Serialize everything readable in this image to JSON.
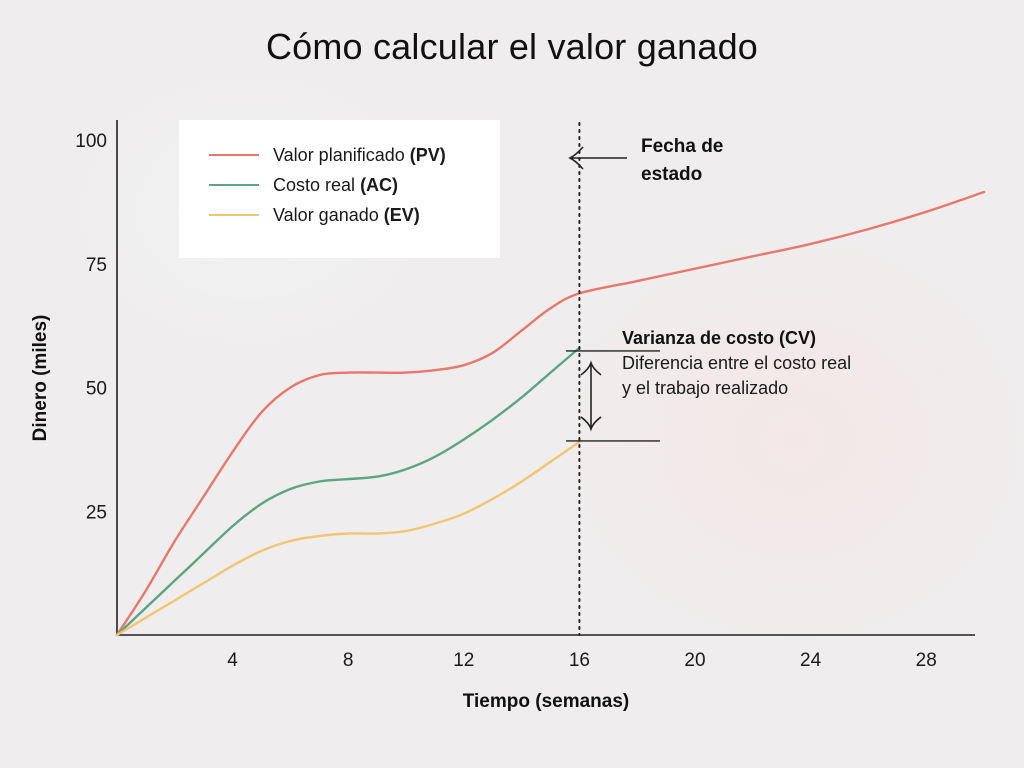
{
  "title": "Cómo calcular el valor ganado",
  "legend": {
    "items": [
      {
        "text": "Valor planificado",
        "abbr": "(PV)",
        "color": "#e8786d"
      },
      {
        "text": "Costo real",
        "abbr": "(AC)",
        "color": "#5aa584"
      },
      {
        "text": "Valor ganado",
        "abbr": "(EV)",
        "color": "#f3c573"
      }
    ]
  },
  "annotations": {
    "status_date": "Fecha de estado",
    "cv_title": "Varianza de costo (CV)",
    "cv_desc_line1": "Diferencia entre el costo real",
    "cv_desc_line2": "y el trabajo realizado"
  },
  "chart_data": {
    "type": "line",
    "title": "Cómo calcular el valor ganado",
    "xlabel": "Tiempo (semanas)",
    "ylabel": "Dinero (miles)",
    "xlim": [
      0,
      30
    ],
    "ylim": [
      0,
      100
    ],
    "xticks": [
      4,
      8,
      12,
      16,
      20,
      24,
      28
    ],
    "yticks": [
      25,
      50,
      75,
      100
    ],
    "grid": false,
    "legend_position": "top-left",
    "status_date_x": 16,
    "series": [
      {
        "name": "Valor planificado (PV)",
        "color": "#e8786d",
        "x": [
          0,
          1,
          2,
          3,
          4,
          5,
          6,
          7,
          8,
          9,
          10,
          11,
          12,
          13,
          14,
          15,
          16,
          18,
          20,
          22,
          24,
          26,
          28,
          30
        ],
        "y": [
          0,
          9,
          19,
          28,
          37,
          45,
          50,
          52.5,
          53,
          53,
          53,
          53.5,
          54.5,
          57,
          61.5,
          66,
          69,
          71.5,
          74,
          76.5,
          79,
          82,
          85.5,
          89.5
        ]
      },
      {
        "name": "Costo real (AC)",
        "color": "#5aa584",
        "x": [
          0,
          1,
          2,
          3,
          4,
          5,
          6,
          7,
          8,
          9,
          10,
          11,
          12,
          13,
          14,
          15,
          16
        ],
        "y": [
          0,
          5.5,
          11,
          16.5,
          22,
          26.5,
          29.5,
          31,
          31.5,
          32,
          33.5,
          36,
          39.5,
          43.5,
          48,
          53,
          58
        ]
      },
      {
        "name": "Valor ganado (EV)",
        "color": "#f3c573",
        "x": [
          0,
          1,
          2,
          3,
          4,
          5,
          6,
          7,
          8,
          9,
          10,
          11,
          12,
          13,
          14,
          15,
          16
        ],
        "y": [
          0,
          3.5,
          7,
          10.5,
          14,
          17,
          19,
          20,
          20.5,
          20.5,
          21,
          22.5,
          24.5,
          27.5,
          31,
          35,
          39
        ]
      }
    ]
  }
}
